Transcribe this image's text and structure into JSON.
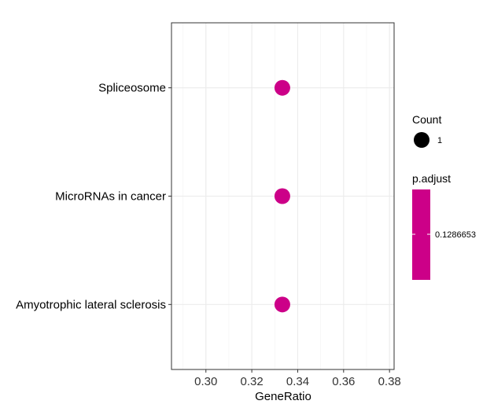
{
  "chart_data": {
    "type": "scatter",
    "xlabel": "GeneRatio",
    "ylabel": "",
    "xlim": [
      0.285,
      0.382
    ],
    "x_ticks": [
      0.3,
      0.32,
      0.34,
      0.36,
      0.38
    ],
    "x_tick_labels": [
      "0.30",
      "0.32",
      "0.34",
      "0.36",
      "0.38"
    ],
    "categories": [
      "Spliceosome",
      "MicroRNAs in cancer",
      "Amyotrophic lateral sclerosis"
    ],
    "points": [
      {
        "category": "Spliceosome",
        "x": 0.3333,
        "count": 1,
        "p_adjust": 0.1286653
      },
      {
        "category": "MicroRNAs in cancer",
        "x": 0.3333,
        "count": 1,
        "p_adjust": 0.1286653
      },
      {
        "category": "Amyotrophic lateral sclerosis",
        "x": 0.3333,
        "count": 1,
        "p_adjust": 0.1286653
      }
    ],
    "grid": true,
    "point_color": "#CC0088",
    "legend": {
      "placement": "right",
      "size_title": "Count",
      "size_entries": [
        "1"
      ],
      "color_title": "p.adjust",
      "color_entries": [
        "0.1286653"
      ],
      "color_bar": "#CC0088"
    }
  }
}
